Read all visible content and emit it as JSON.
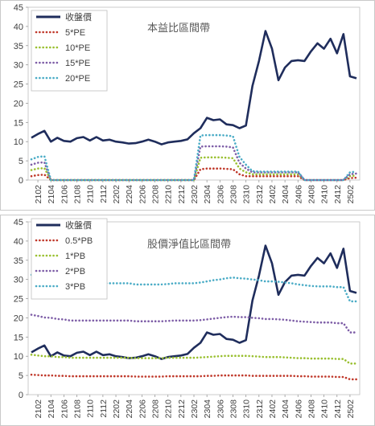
{
  "chart_data": [
    {
      "type": "line",
      "title": "本益比區間帶",
      "ylim": [
        0,
        45
      ],
      "yticks": [
        0,
        5,
        10,
        15,
        20,
        25,
        30,
        35,
        40,
        45
      ],
      "grid": "none",
      "legend_position": "top-left",
      "background": "#ffffff",
      "x": [
        "2101",
        "2102",
        "2103",
        "2104",
        "2105",
        "2106",
        "2107",
        "2108",
        "2109",
        "2110",
        "2111",
        "2112",
        "2201",
        "2202",
        "2203",
        "2204",
        "2205",
        "2206",
        "2207",
        "2208",
        "2209",
        "2210",
        "2211",
        "2212",
        "2301",
        "2302",
        "2303",
        "2304",
        "2305",
        "2306",
        "2307",
        "2308",
        "2309",
        "2310",
        "2311",
        "2312",
        "2401",
        "2402",
        "2403",
        "2404",
        "2405",
        "2406",
        "2407",
        "2408",
        "2409",
        "2410",
        "2411",
        "2412",
        "2501",
        "2502",
        "2503"
      ],
      "xtick_labels": [
        "2102",
        "2104",
        "2106",
        "2108",
        "2110",
        "2112",
        "2202",
        "2204",
        "2206",
        "2208",
        "2210",
        "2212",
        "2302",
        "2304",
        "2306",
        "2308",
        "2310",
        "2312",
        "2402",
        "2404",
        "2406",
        "2408",
        "2410",
        "2412",
        "2502"
      ],
      "series": [
        {
          "name": "收盤價",
          "color": "#1f2d5c",
          "style": "solid",
          "values": [
            11,
            12,
            12.8,
            10,
            11,
            10.2,
            10,
            10.9,
            11.2,
            10.3,
            11.2,
            10.3,
            10.5,
            10,
            9.8,
            9.5,
            9.6,
            10,
            10.5,
            10,
            9.3,
            9.8,
            10,
            10.2,
            10.6,
            12.2,
            13.5,
            16.2,
            15.6,
            15.8,
            14.5,
            14.3,
            13.5,
            14.2,
            24.5,
            31,
            38.8,
            34.2,
            26,
            29.3,
            31,
            31.2,
            31,
            33.5,
            35.6,
            34.2,
            36.8,
            33,
            38,
            27,
            26.5
          ]
        },
        {
          "name": "5*PE",
          "color": "#c0392b",
          "style": "dotted",
          "values": [
            1,
            1.3,
            1.4,
            0,
            0,
            0,
            0,
            0,
            0,
            0,
            0,
            0,
            0,
            0,
            0,
            0,
            0,
            0,
            0,
            0,
            0,
            0,
            0,
            0,
            0,
            0,
            2.8,
            3,
            3,
            3,
            2.9,
            2.8,
            1.5,
            1,
            1,
            1,
            1,
            1,
            1,
            1,
            1,
            1,
            0,
            0,
            0,
            0,
            0,
            0,
            0,
            0.5,
            0.6
          ]
        },
        {
          "name": "10*PE",
          "color": "#9ac031",
          "style": "dotted",
          "values": [
            2.6,
            3,
            3.1,
            0,
            0,
            0,
            0,
            0,
            0,
            0,
            0,
            0,
            0,
            0,
            0,
            0,
            0,
            0,
            0,
            0,
            0,
            0,
            0,
            0,
            0,
            0,
            5.8,
            5.9,
            5.9,
            5.9,
            5.8,
            5.7,
            3,
            2,
            1.5,
            1.5,
            1.5,
            1.5,
            1.5,
            1.5,
            1.5,
            1.5,
            0,
            0,
            0,
            0,
            0,
            0,
            0,
            1,
            1.2
          ]
        },
        {
          "name": "15*PE",
          "color": "#7e5ea7",
          "style": "dotted",
          "values": [
            4,
            4.5,
            4.6,
            0,
            0,
            0,
            0,
            0,
            0,
            0,
            0,
            0,
            0,
            0,
            0,
            0,
            0,
            0,
            0,
            0,
            0,
            0,
            0,
            0,
            0,
            0,
            8.7,
            8.8,
            8.8,
            8.8,
            8.7,
            8.5,
            4.5,
            3,
            2,
            2,
            2,
            2,
            2,
            2,
            2,
            2,
            0,
            0,
            0,
            0,
            0,
            0,
            0,
            1.5,
            1.7
          ]
        },
        {
          "name": "20*PE",
          "color": "#4bacc6",
          "style": "dotted",
          "values": [
            5.4,
            6,
            6.2,
            0,
            0,
            0,
            0,
            0,
            0,
            0,
            0,
            0,
            0,
            0,
            0,
            0,
            0,
            0,
            0,
            0,
            0,
            0,
            0,
            0,
            0,
            0,
            11.6,
            11.7,
            11.7,
            11.7,
            11.6,
            11.4,
            6,
            4,
            2.3,
            2.2,
            2.2,
            2.2,
            2.2,
            2.2,
            2.2,
            2.2,
            0,
            0,
            0,
            0,
            0,
            0,
            0,
            2,
            2.2
          ]
        }
      ]
    },
    {
      "type": "line",
      "title": "股價淨值比區間帶",
      "ylim": [
        0,
        45
      ],
      "yticks": [
        0,
        5,
        10,
        15,
        20,
        25,
        30,
        35,
        40,
        45
      ],
      "grid": "none",
      "legend_position": "top-left",
      "background": "#ffffff",
      "x": [
        "2101",
        "2102",
        "2103",
        "2104",
        "2105",
        "2106",
        "2107",
        "2108",
        "2109",
        "2110",
        "2111",
        "2112",
        "2201",
        "2202",
        "2203",
        "2204",
        "2205",
        "2206",
        "2207",
        "2208",
        "2209",
        "2210",
        "2211",
        "2212",
        "2301",
        "2302",
        "2303",
        "2304",
        "2305",
        "2306",
        "2307",
        "2308",
        "2309",
        "2310",
        "2311",
        "2312",
        "2401",
        "2402",
        "2403",
        "2404",
        "2405",
        "2406",
        "2407",
        "2408",
        "2409",
        "2410",
        "2411",
        "2412",
        "2501",
        "2502",
        "2503"
      ],
      "xtick_labels": [
        "2102",
        "2104",
        "2106",
        "2108",
        "2110",
        "2112",
        "2202",
        "2204",
        "2206",
        "2208",
        "2210",
        "2212",
        "2302",
        "2304",
        "2306",
        "2308",
        "2310",
        "2312",
        "2402",
        "2404",
        "2406",
        "2408",
        "2410",
        "2412",
        "2502"
      ],
      "series": [
        {
          "name": "收盤價",
          "color": "#1f2d5c",
          "style": "solid",
          "values": [
            11,
            12,
            12.8,
            10,
            11,
            10.2,
            10,
            10.9,
            11.2,
            10.3,
            11.2,
            10.3,
            10.5,
            10,
            9.8,
            9.5,
            9.6,
            10,
            10.5,
            10,
            9.3,
            9.8,
            10,
            10.2,
            10.6,
            12.2,
            13.5,
            16.2,
            15.6,
            15.8,
            14.5,
            14.3,
            13.5,
            14.2,
            24.5,
            31,
            38.8,
            34.2,
            26,
            29.3,
            31,
            31.2,
            31,
            33.5,
            35.6,
            34.2,
            36.8,
            33,
            38,
            27,
            26.5
          ]
        },
        {
          "name": "0.5*PB",
          "color": "#c0392b",
          "style": "dotted",
          "values": [
            5.2,
            5.1,
            5,
            5,
            4.9,
            4.9,
            4.8,
            4.8,
            4.8,
            4.8,
            4.8,
            4.8,
            4.8,
            4.8,
            4.8,
            4.8,
            4.7,
            4.7,
            4.7,
            4.7,
            4.7,
            4.8,
            4.8,
            4.8,
            4.8,
            4.8,
            4.8,
            4.9,
            4.9,
            5,
            5,
            5,
            5,
            5,
            4.9,
            4.9,
            4.9,
            4.9,
            4.9,
            4.9,
            4.9,
            4.8,
            4.8,
            4.7,
            4.7,
            4.7,
            4.7,
            4.6,
            4.6,
            4,
            4
          ]
        },
        {
          "name": "1*PB",
          "color": "#9ac031",
          "style": "dotted",
          "values": [
            10.4,
            10.2,
            10,
            10,
            9.8,
            9.8,
            9.6,
            9.6,
            9.6,
            9.6,
            9.6,
            9.6,
            9.6,
            9.6,
            9.6,
            9.6,
            9.5,
            9.5,
            9.5,
            9.5,
            9.5,
            9.6,
            9.6,
            9.6,
            9.6,
            9.6,
            9.7,
            9.8,
            9.9,
            10,
            10.1,
            10.1,
            10.1,
            10.1,
            10,
            9.9,
            9.8,
            9.8,
            9.8,
            9.7,
            9.6,
            9.5,
            9.5,
            9.4,
            9.4,
            9.4,
            9.4,
            9.3,
            9.3,
            8.1,
            8.1
          ]
        },
        {
          "name": "2*PB",
          "color": "#7e5ea7",
          "style": "dotted",
          "values": [
            20.8,
            20.5,
            20.1,
            20,
            19.7,
            19.6,
            19.3,
            19.3,
            19.3,
            19.3,
            19.3,
            19.3,
            19.3,
            19.3,
            19.3,
            19.3,
            19.1,
            19.1,
            19.1,
            19.1,
            19.1,
            19.2,
            19.3,
            19.3,
            19.3,
            19.3,
            19.4,
            19.6,
            19.8,
            20,
            20.2,
            20.3,
            20.2,
            20.2,
            20,
            19.9,
            19.7,
            19.7,
            19.6,
            19.5,
            19.3,
            19.1,
            19,
            18.9,
            18.8,
            18.8,
            18.8,
            18.6,
            18.6,
            16.2,
            16.2
          ]
        },
        {
          "name": "3*PB",
          "color": "#4bacc6",
          "style": "dotted",
          "values": [
            31.2,
            30.8,
            30.2,
            30,
            29.6,
            29.4,
            29,
            29,
            29,
            29,
            29,
            29,
            29,
            29,
            29,
            29,
            28.7,
            28.7,
            28.7,
            28.7,
            28.7,
            28.8,
            29,
            29,
            29,
            29,
            29.2,
            29.5,
            29.8,
            30,
            30.3,
            30.5,
            30.3,
            30.2,
            30,
            29.8,
            29.5,
            29.5,
            29.4,
            29.2,
            29,
            28.7,
            28.5,
            28.3,
            28.2,
            28.2,
            28.2,
            28,
            28,
            24.3,
            24.3
          ]
        }
      ]
    }
  ]
}
